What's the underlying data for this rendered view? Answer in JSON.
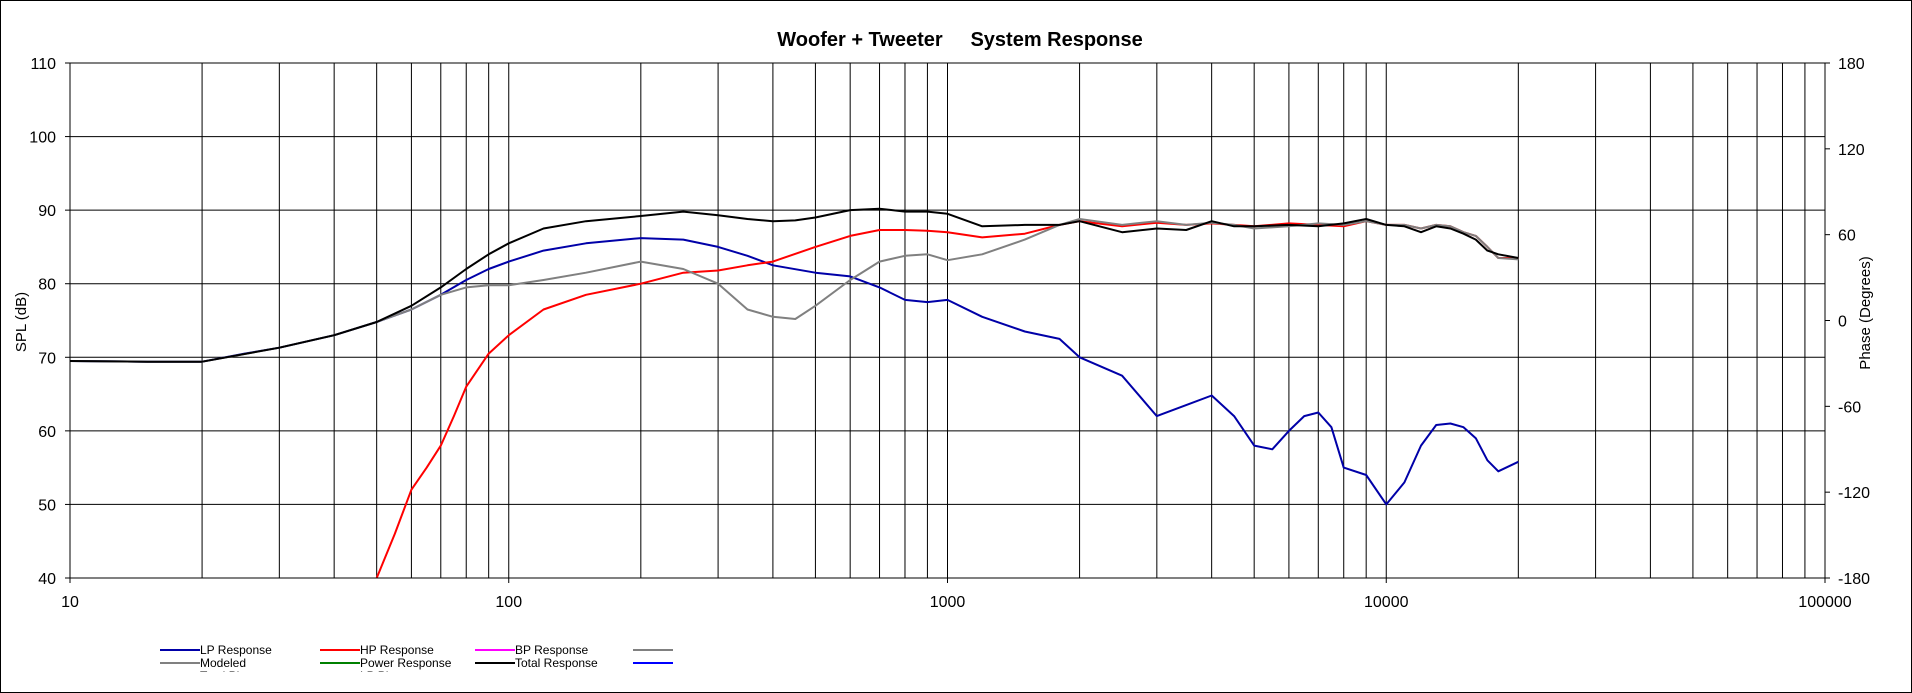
{
  "chart_data": {
    "type": "line",
    "title": "Woofer + Tweeter     System Response",
    "xscale": "log",
    "xlim": [
      10,
      100000
    ],
    "ylim": [
      40,
      110
    ],
    "y2lim": [
      -180,
      180
    ],
    "ylabel": "SPL (dB)",
    "y2label": "Phase (Degrees)",
    "grid": true,
    "x_tick_labels": [
      "10",
      "100",
      "1000",
      "10000",
      "100000"
    ],
    "y_ticks": [
      40,
      50,
      60,
      70,
      80,
      90,
      100,
      110
    ],
    "y2_ticks": [
      -180,
      -120,
      -60,
      0,
      60,
      120,
      180
    ],
    "legend_position": "bottom-left",
    "legend": [
      {
        "label": "LP Response",
        "color": "#0000a8"
      },
      {
        "label": "HP Response",
        "color": "#ff0000"
      },
      {
        "label": "BP Response",
        "color": "#ff00ff"
      },
      {
        "label": "",
        "color": "#808080"
      },
      {
        "label": "Modeled",
        "color": "#808080"
      },
      {
        "label": "Power Response",
        "color": "#008000"
      },
      {
        "label": "Total Response",
        "color": "#000000"
      },
      {
        "label": "",
        "color": "#0000ff"
      },
      {
        "label": "Total Phase",
        "color": "#a0a0a0"
      },
      {
        "label": "LP Phase",
        "color": "#0000ff"
      }
    ],
    "series": [
      {
        "name": "LP Response",
        "color": "#0000a8",
        "x": [
          10,
          15,
          20,
          25,
          30,
          40,
          50,
          60,
          70,
          80,
          90,
          100,
          120,
          150,
          200,
          250,
          300,
          350,
          400,
          500,
          600,
          700,
          800,
          900,
          1000,
          1200,
          1500,
          1800,
          2000,
          2500,
          3000,
          3500,
          4000,
          4500,
          5000,
          5500,
          6000,
          6500,
          7000,
          7500,
          8000,
          9000,
          10000,
          11000,
          12000,
          13000,
          14000,
          15000,
          16000,
          17000,
          18000,
          20000
        ],
        "y": [
          69.5,
          69.4,
          69.4,
          70.5,
          71.3,
          73.0,
          74.8,
          76.5,
          78.5,
          80.5,
          82.0,
          83.0,
          84.5,
          85.5,
          86.2,
          86.0,
          85.0,
          83.8,
          82.5,
          81.5,
          81.0,
          79.5,
          77.8,
          77.5,
          77.8,
          75.5,
          73.5,
          72.5,
          70.0,
          67.5,
          62.0,
          63.5,
          64.8,
          62.0,
          58.0,
          57.5,
          60.0,
          62.0,
          62.5,
          60.5,
          55.0,
          54.0,
          50.0,
          53.0,
          58.0,
          60.8,
          61.0,
          60.5,
          59.0,
          56.0,
          54.5,
          55.8
        ]
      },
      {
        "name": "HP Response",
        "color": "#ff0000",
        "x": [
          50,
          55,
          60,
          65,
          70,
          75,
          80,
          90,
          100,
          120,
          150,
          200,
          250,
          300,
          350,
          400,
          500,
          600,
          700,
          800,
          900,
          1000,
          1200,
          1500,
          1800,
          2000,
          2500,
          3000,
          3500,
          4000,
          4500,
          5000,
          6000,
          7000,
          8000,
          9000,
          10000,
          11000,
          12000,
          13000,
          14000,
          15000,
          16000,
          17000,
          18000,
          20000
        ],
        "y": [
          40.0,
          46.0,
          52.0,
          55.0,
          58.0,
          62.0,
          66.0,
          70.5,
          73.0,
          76.5,
          78.5,
          80.0,
          81.5,
          81.8,
          82.5,
          83.0,
          85.0,
          86.5,
          87.3,
          87.3,
          87.2,
          87.0,
          86.3,
          86.8,
          88.0,
          88.5,
          87.8,
          88.3,
          88.0,
          88.2,
          88.0,
          87.8,
          88.2,
          88.0,
          87.8,
          88.5,
          88.0,
          88.0,
          87.5,
          88.0,
          87.8,
          87.0,
          86.5,
          85.0,
          83.5,
          83.5
        ]
      },
      {
        "name": "Modeled",
        "color": "#808080",
        "x": [
          10,
          15,
          20,
          30,
          40,
          50,
          60,
          70,
          80,
          90,
          100,
          120,
          150,
          200,
          250,
          300,
          350,
          400,
          450,
          500,
          600,
          700,
          800,
          900,
          1000,
          1200,
          1500,
          1800,
          2000,
          2500,
          3000,
          3500,
          4000,
          4500,
          5000,
          6000,
          7000,
          8000,
          9000,
          10000,
          11000,
          12000,
          13000,
          14000,
          15000,
          16000,
          17000,
          18000,
          20000
        ],
        "y": [
          69.5,
          69.4,
          69.4,
          71.3,
          73.0,
          74.8,
          76.5,
          78.5,
          79.5,
          79.8,
          79.8,
          80.5,
          81.5,
          83.0,
          82.0,
          80.0,
          76.5,
          75.5,
          75.2,
          77.0,
          80.5,
          83.0,
          83.8,
          84.0,
          83.2,
          84.0,
          86.0,
          88.0,
          88.8,
          88.0,
          88.5,
          88.0,
          88.3,
          88.0,
          87.5,
          87.8,
          88.2,
          88.0,
          88.5,
          88.0,
          88.0,
          87.5,
          88.0,
          87.8,
          87.0,
          86.5,
          85.0,
          83.5,
          83.3
        ]
      },
      {
        "name": "Total Response",
        "color": "#000000",
        "x": [
          10,
          15,
          20,
          30,
          40,
          50,
          60,
          70,
          80,
          90,
          100,
          120,
          150,
          200,
          250,
          300,
          350,
          400,
          450,
          500,
          600,
          700,
          800,
          900,
          1000,
          1200,
          1500,
          1800,
          2000,
          2500,
          3000,
          3500,
          4000,
          4500,
          5000,
          6000,
          7000,
          8000,
          9000,
          10000,
          11000,
          12000,
          13000,
          14000,
          15000,
          16000,
          17000,
          18000,
          20000
        ],
        "y": [
          69.5,
          69.4,
          69.4,
          71.3,
          73.0,
          74.8,
          77.0,
          79.5,
          82.0,
          84.0,
          85.5,
          87.5,
          88.5,
          89.2,
          89.8,
          89.3,
          88.8,
          88.5,
          88.6,
          89.0,
          90.0,
          90.2,
          89.8,
          89.8,
          89.5,
          87.8,
          88.0,
          88.0,
          88.5,
          87.0,
          87.5,
          87.3,
          88.5,
          87.8,
          87.8,
          88.0,
          87.8,
          88.2,
          88.8,
          88.0,
          87.8,
          87.0,
          87.8,
          87.5,
          86.8,
          86.0,
          84.5,
          84.0,
          83.5
        ]
      }
    ]
  }
}
